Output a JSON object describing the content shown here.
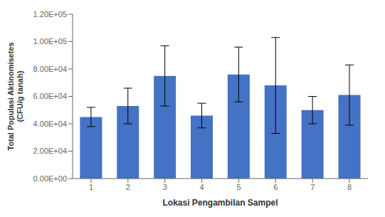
{
  "chart_data": {
    "type": "bar",
    "categories": [
      "1",
      "2",
      "3",
      "4",
      "5",
      "6",
      "7",
      "8"
    ],
    "values": [
      45000,
      53000,
      75000,
      46000,
      76000,
      68000,
      50000,
      61000
    ],
    "errors": [
      7000,
      13000,
      22000,
      9000,
      20000,
      35000,
      10000,
      22000
    ],
    "color": "#4472C4",
    "xlabel": "Lokasi Pengambilan Sampel",
    "ylabel": "Total Populasi Aktinomisetes\n(CFU/g tanah)",
    "ylim": [
      0,
      120000
    ],
    "yticks": [
      {
        "value": 0,
        "label": "0.00E+00"
      },
      {
        "value": 20000,
        "label": "2.00E+04"
      },
      {
        "value": 40000,
        "label": "4.00E+04"
      },
      {
        "value": 60000,
        "label": "6.00E+04"
      },
      {
        "value": 80000,
        "label": "8.00E+04"
      },
      {
        "value": 100000,
        "label": "1.00E+05"
      },
      {
        "value": 120000,
        "label": "1.20E+05"
      }
    ]
  }
}
